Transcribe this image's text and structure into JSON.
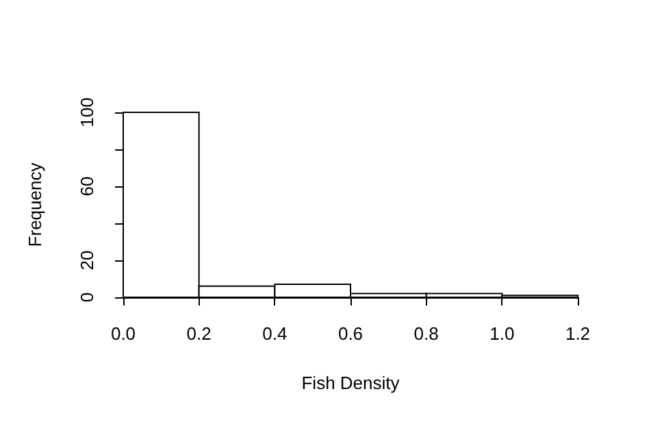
{
  "chart_data": {
    "type": "histogram",
    "xlabel": "Fish Density",
    "ylabel": "Frequency",
    "bins": [
      0,
      0.2,
      0.4,
      0.6,
      0.8,
      1.0,
      1.2
    ],
    "values": [
      100,
      6,
      7,
      2,
      2,
      1
    ],
    "color": "#ffffff",
    "xlim": [
      0,
      1.2
    ],
    "ylim": [
      0,
      100
    ],
    "xticks": [
      {
        "value": 0,
        "label": "0.0"
      },
      {
        "value": 0.2,
        "label": "0.2"
      },
      {
        "value": 0.4,
        "label": "0.4"
      },
      {
        "value": 0.6,
        "label": "0.6"
      },
      {
        "value": 0.8,
        "label": "0.8"
      },
      {
        "value": 1.0,
        "label": "1.0"
      },
      {
        "value": 1.2,
        "label": "1.2"
      }
    ],
    "yticks": [
      0,
      20,
      {
        "value": 40,
        "label": null
      },
      60,
      {
        "value": 80,
        "label": null
      },
      100
    ],
    "grid": false
  }
}
